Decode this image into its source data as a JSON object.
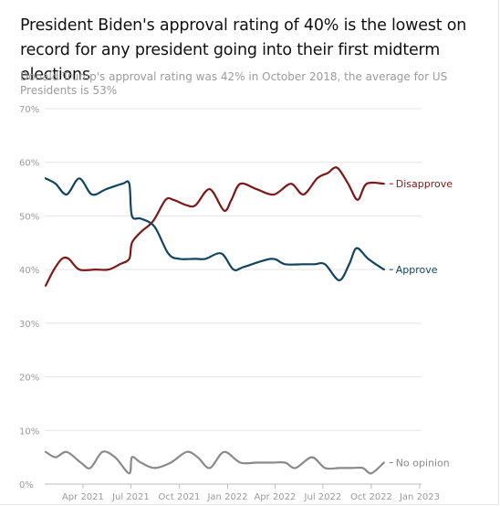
{
  "title": "President Biden's approval rating of 40% is the lowest on record for any president going into their first midterm elections",
  "subtitle": "Donald Trump's approval rating was 42% in October 2018, the average for US Presidents is 53%",
  "chart_data": {
    "type": "line",
    "title": "President Biden's approval rating of 40% is the lowest on record for any president going into their first midterm elections",
    "subtitle": "Donald Trump's approval rating was 42% in October 2018, the average for US Presidents is 53%",
    "xlabel": "",
    "ylabel": "",
    "xlim": [
      "2021-01-20",
      "2023-01-01"
    ],
    "ylim": [
      0,
      70
    ],
    "y_ticks": [
      0,
      10,
      20,
      30,
      40,
      50,
      60,
      70
    ],
    "y_tick_labels": [
      "0%",
      "10%",
      "20%",
      "30%",
      "40%",
      "50%",
      "60%",
      "70%"
    ],
    "x_ticks": [
      "2021-04-01",
      "2021-07-01",
      "2021-10-01",
      "2022-01-01",
      "2022-04-01",
      "2022-07-01",
      "2022-10-01",
      "2023-01-01"
    ],
    "x_tick_labels": [
      "Apr 2021",
      "Jul 2021",
      "Oct 2021",
      "Jan 2022",
      "Apr 2022",
      "Jul 2022",
      "Oct 2022",
      "Jan 2023"
    ],
    "grid": "horizontal",
    "legend": "end-of-line labels",
    "series": [
      {
        "name": "Disapprove",
        "color": "#7b1818",
        "points": [
          [
            "2021-01-20",
            37
          ],
          [
            "2021-02-05",
            40
          ],
          [
            "2021-02-20",
            42
          ],
          [
            "2021-03-05",
            42
          ],
          [
            "2021-03-25",
            40
          ],
          [
            "2021-04-25",
            40
          ],
          [
            "2021-05-20",
            40
          ],
          [
            "2021-06-10",
            41
          ],
          [
            "2021-06-28",
            42
          ],
          [
            "2021-07-03",
            45
          ],
          [
            "2021-07-20",
            47
          ],
          [
            "2021-08-12",
            49
          ],
          [
            "2021-09-05",
            53
          ],
          [
            "2021-09-20",
            53
          ],
          [
            "2021-10-15",
            52
          ],
          [
            "2021-11-01",
            52
          ],
          [
            "2021-11-28",
            55
          ],
          [
            "2021-12-25",
            51
          ],
          [
            "2022-01-08",
            53
          ],
          [
            "2022-01-25",
            56
          ],
          [
            "2022-02-25",
            55
          ],
          [
            "2022-03-30",
            54
          ],
          [
            "2022-05-01",
            56
          ],
          [
            "2022-05-25",
            54
          ],
          [
            "2022-06-20",
            57
          ],
          [
            "2022-07-10",
            58
          ],
          [
            "2022-07-28",
            59
          ],
          [
            "2022-08-18",
            56
          ],
          [
            "2022-09-05",
            53
          ],
          [
            "2022-09-22",
            56
          ],
          [
            "2022-10-25",
            56
          ]
        ]
      },
      {
        "name": "Approve",
        "color": "#12435f",
        "points": [
          [
            "2021-01-20",
            57
          ],
          [
            "2021-02-08",
            56
          ],
          [
            "2021-03-01",
            54
          ],
          [
            "2021-03-25",
            57
          ],
          [
            "2021-04-18",
            54
          ],
          [
            "2021-05-15",
            55
          ],
          [
            "2021-06-15",
            56
          ],
          [
            "2021-06-28",
            56
          ],
          [
            "2021-07-03",
            50
          ],
          [
            "2021-07-20",
            49.5
          ],
          [
            "2021-08-15",
            48
          ],
          [
            "2021-09-10",
            43
          ],
          [
            "2021-10-01",
            42
          ],
          [
            "2021-11-01",
            42
          ],
          [
            "2021-11-20",
            42
          ],
          [
            "2021-12-20",
            43
          ],
          [
            "2022-01-12",
            40
          ],
          [
            "2022-02-01",
            40.5
          ],
          [
            "2022-03-25",
            42
          ],
          [
            "2022-04-20",
            41
          ],
          [
            "2022-05-25",
            41
          ],
          [
            "2022-06-15",
            41
          ],
          [
            "2022-07-05",
            41
          ],
          [
            "2022-08-01",
            38
          ],
          [
            "2022-08-20",
            41
          ],
          [
            "2022-09-03",
            44
          ],
          [
            "2022-09-25",
            42
          ],
          [
            "2022-10-25",
            40
          ]
        ]
      },
      {
        "name": "No opinion",
        "color": "#8a8a8a",
        "points": [
          [
            "2021-01-20",
            6
          ],
          [
            "2021-02-08",
            5
          ],
          [
            "2021-03-01",
            6
          ],
          [
            "2021-03-28",
            4
          ],
          [
            "2021-04-15",
            3
          ],
          [
            "2021-05-08",
            6
          ],
          [
            "2021-06-01",
            5
          ],
          [
            "2021-06-28",
            2
          ],
          [
            "2021-07-03",
            5
          ],
          [
            "2021-07-20",
            4
          ],
          [
            "2021-08-15",
            3
          ],
          [
            "2021-09-15",
            4
          ],
          [
            "2021-10-15",
            6
          ],
          [
            "2021-11-05",
            5
          ],
          [
            "2021-11-28",
            3
          ],
          [
            "2021-12-25",
            6
          ],
          [
            "2022-01-25",
            4
          ],
          [
            "2022-02-25",
            4
          ],
          [
            "2022-03-25",
            4
          ],
          [
            "2022-04-20",
            4
          ],
          [
            "2022-05-10",
            3
          ],
          [
            "2022-06-10",
            5
          ],
          [
            "2022-07-05",
            3
          ],
          [
            "2022-08-01",
            3
          ],
          [
            "2022-08-25",
            3
          ],
          [
            "2022-09-15",
            3
          ],
          [
            "2022-10-01",
            2
          ],
          [
            "2022-10-25",
            4
          ]
        ]
      }
    ]
  }
}
